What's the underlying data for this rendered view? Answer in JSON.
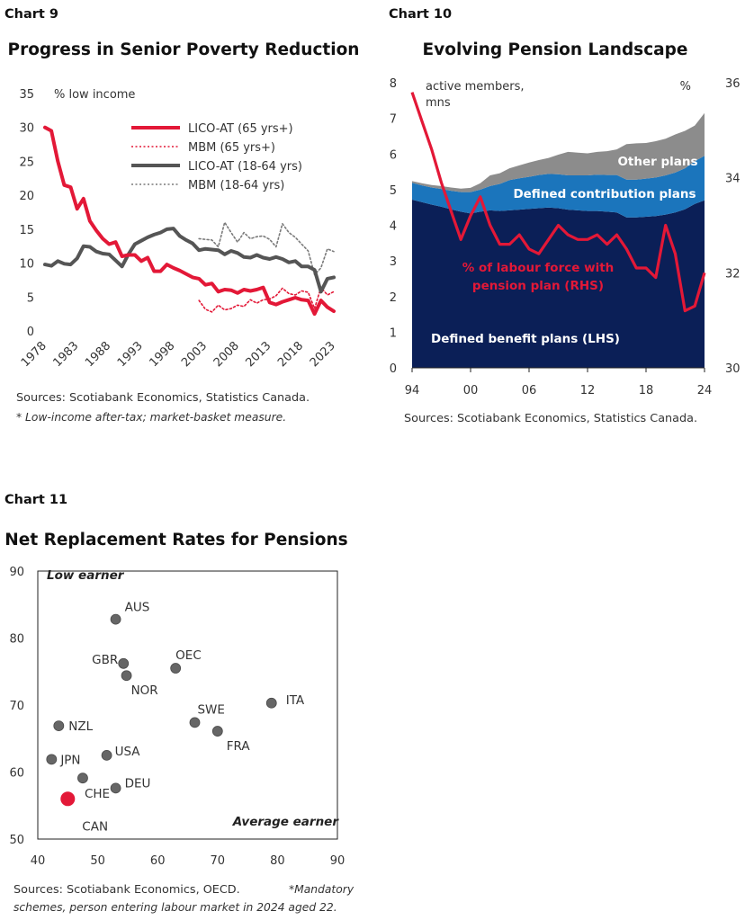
{
  "chart_data": [
    {
      "type": "line",
      "label": "Chart 9",
      "title": "Progress in Senior Poverty Reduction",
      "ylabel": "% low income",
      "ylim": [
        0,
        35
      ],
      "yticks": [
        "0",
        "5",
        "10",
        "15",
        "20",
        "25",
        "30",
        "35"
      ],
      "xlim": [
        1978,
        2023
      ],
      "xticks": [
        "1978",
        "1983",
        "1988",
        "1993",
        "1998",
        "2003",
        "2008",
        "2013",
        "2018",
        "2023"
      ],
      "grid": false,
      "legend_position": "top-right",
      "source": "Sources: Scotiabank Economics, Statistics Canada.",
      "note": "* Low-income after-tax; market-basket measure.",
      "series": [
        {
          "name": "LICO-AT (65 yrs+)",
          "color": "#e31837",
          "style": "solid",
          "x": [
            1978,
            1979,
            1980,
            1981,
            1982,
            1983,
            1984,
            1985,
            1986,
            1987,
            1988,
            1989,
            1990,
            1991,
            1992,
            1993,
            1994,
            1995,
            1996,
            1997,
            1998,
            1999,
            2000,
            2001,
            2002,
            2003,
            2004,
            2005,
            2006,
            2007,
            2008,
            2009,
            2010,
            2011,
            2012,
            2013,
            2014,
            2015,
            2016,
            2017,
            2018,
            2019,
            2020,
            2021,
            2022,
            2023
          ],
          "y": [
            30,
            29.5,
            25,
            21.5,
            21.2,
            18,
            19.5,
            16.2,
            14.8,
            13.6,
            12.8,
            13.1,
            11,
            11.2,
            11.2,
            10.3,
            10.8,
            8.8,
            8.8,
            9.8,
            9.3,
            8.9,
            8.4,
            7.9,
            7.7,
            6.8,
            7,
            5.8,
            6.1,
            6,
            5.6,
            6.1,
            5.9,
            6.1,
            6.4,
            4.2,
            3.9,
            4.3,
            4.6,
            4.9,
            4.6,
            4.5,
            2.5,
            4.5,
            3.5,
            2.9
          ]
        },
        {
          "name": "MBM (65 yrs+)",
          "color": "#e31837",
          "style": "dotted",
          "x": [
            2002,
            2003,
            2004,
            2005,
            2006,
            2007,
            2008,
            2009,
            2010,
            2011,
            2012,
            2013,
            2014,
            2015,
            2016,
            2017,
            2018,
            2019,
            2020,
            2021,
            2022,
            2023
          ],
          "y": [
            4.5,
            3.2,
            2.8,
            3.8,
            3.1,
            3.3,
            3.8,
            3.6,
            4.6,
            4.1,
            4.6,
            4.7,
            5.2,
            6.3,
            5.5,
            5.3,
            5.9,
            5.7,
            3.3,
            6.4,
            5.3,
            5.8
          ]
        },
        {
          "name": "LICO-AT (18-64 yrs)",
          "color": "#555555",
          "style": "solid",
          "x": [
            1978,
            1979,
            1980,
            1981,
            1982,
            1983,
            1984,
            1985,
            1986,
            1987,
            1988,
            1989,
            1990,
            1991,
            1992,
            1993,
            1994,
            1995,
            1996,
            1997,
            1998,
            1999,
            2000,
            2001,
            2002,
            2003,
            2004,
            2005,
            2006,
            2007,
            2008,
            2009,
            2010,
            2011,
            2012,
            2013,
            2014,
            2015,
            2016,
            2017,
            2018,
            2019,
            2020,
            2021,
            2022,
            2023
          ],
          "y": [
            9.8,
            9.6,
            10.3,
            9.9,
            9.8,
            10.7,
            12.5,
            12.4,
            11.7,
            11.4,
            11.3,
            10.4,
            9.5,
            11.3,
            12.8,
            13.3,
            13.8,
            14.2,
            14.5,
            15,
            15.1,
            14,
            13.4,
            12.9,
            11.9,
            12.1,
            12,
            11.9,
            11.3,
            11.8,
            11.5,
            10.9,
            10.8,
            11.2,
            10.8,
            10.6,
            10.9,
            10.6,
            10.1,
            10.3,
            9.5,
            9.5,
            9,
            5.8,
            7.7,
            7.9
          ]
        },
        {
          "name": "MBM (18-64 yrs)",
          "color": "#7a7a7a",
          "style": "dotted",
          "x": [
            2002,
            2003,
            2004,
            2005,
            2006,
            2007,
            2008,
            2009,
            2010,
            2011,
            2012,
            2013,
            2014,
            2015,
            2016,
            2017,
            2018,
            2019,
            2020,
            2021,
            2022,
            2023
          ],
          "y": [
            13.6,
            13.5,
            13.4,
            12.4,
            16,
            14.5,
            13.1,
            14.5,
            13.6,
            13.9,
            14,
            13.5,
            12.4,
            15.8,
            14.5,
            13.8,
            12.8,
            11.8,
            8.3,
            9.3,
            12.1,
            11.7
          ]
        }
      ]
    },
    {
      "type": "area",
      "label": "Chart 10",
      "title": "Evolving Pension Landscape",
      "ylabel_left": "active members, mns",
      "ylabel_right": "%",
      "ylim_left": [
        0,
        8
      ],
      "yticks_left": [
        "0",
        "1",
        "2",
        "3",
        "4",
        "5",
        "6",
        "7",
        "8"
      ],
      "ylim_right": [
        30,
        36
      ],
      "yticks_right": [
        "30",
        "32",
        "34",
        "36"
      ],
      "xlim": [
        1994,
        2024
      ],
      "xticks": [
        "94",
        "00",
        "06",
        "12",
        "18",
        "24"
      ],
      "grid": false,
      "source": "Sources: Scotiabank Economics, Statistics Canada.",
      "x": [
        1994,
        1995,
        1996,
        1997,
        1998,
        1999,
        2000,
        2001,
        2002,
        2003,
        2004,
        2005,
        2006,
        2007,
        2008,
        2009,
        2010,
        2011,
        2012,
        2013,
        2014,
        2015,
        2016,
        2017,
        2018,
        2019,
        2020,
        2021,
        2022,
        2023,
        2024
      ],
      "series": [
        {
          "name": "Defined benefit plans (LHS)",
          "color": "#0b1f57",
          "values": [
            4.72,
            4.65,
            4.58,
            4.52,
            4.45,
            4.38,
            4.33,
            4.38,
            4.42,
            4.4,
            4.42,
            4.44,
            4.46,
            4.48,
            4.5,
            4.48,
            4.44,
            4.42,
            4.4,
            4.4,
            4.38,
            4.36,
            4.22,
            4.22,
            4.24,
            4.26,
            4.3,
            4.36,
            4.45,
            4.6,
            4.7
          ]
        },
        {
          "name": "Defined contribution plans",
          "color": "#1b75bc",
          "values": [
            0.47,
            0.47,
            0.48,
            0.5,
            0.52,
            0.55,
            0.6,
            0.62,
            0.68,
            0.76,
            0.85,
            0.88,
            0.9,
            0.93,
            0.94,
            0.95,
            0.96,
            0.98,
            1,
            1.02,
            1.03,
            1.05,
            1.06,
            1.06,
            1.07,
            1.08,
            1.1,
            1.12,
            1.15,
            1.2,
            1.25
          ]
        },
        {
          "name": "Other plans",
          "color": "#8c8c8c",
          "values": [
            0.05,
            0.06,
            0.07,
            0.08,
            0.09,
            0.1,
            0.12,
            0.18,
            0.3,
            0.3,
            0.33,
            0.36,
            0.4,
            0.42,
            0.45,
            0.55,
            0.66,
            0.64,
            0.62,
            0.64,
            0.67,
            0.72,
            1,
            1.02,
            1,
            1.02,
            1.03,
            1.07,
            1.05,
            1,
            1.2
          ]
        },
        {
          "name": "% of labour force with pension plan (RHS)",
          "color": "#e31837",
          "type": "line",
          "axis": "right",
          "values": [
            35.8,
            35.2,
            34.6,
            33.9,
            33.3,
            32.7,
            33.2,
            33.6,
            33,
            32.6,
            32.6,
            32.8,
            32.5,
            32.4,
            32.7,
            33,
            32.8,
            32.7,
            32.7,
            32.8,
            32.6,
            32.8,
            32.5,
            32.1,
            32.1,
            31.9,
            33,
            32.4,
            31.2,
            31.3,
            32
          ]
        }
      ]
    },
    {
      "type": "scatter",
      "label": "Chart 11",
      "title": "Net Replacement Rates for Pensions",
      "xlim": [
        40,
        90
      ],
      "xticks": [
        "40",
        "50",
        "60",
        "70",
        "80",
        "90"
      ],
      "ylim": [
        50,
        90
      ],
      "yticks": [
        "50",
        "60",
        "70",
        "80",
        "90"
      ],
      "corner_top_left": "Low earner",
      "corner_bottom_right": "Average earner",
      "grid": false,
      "source": "Sources: Scotiabank Economics, OECD.",
      "note": "*Mandatory schemes, person entering labour market in 2024 aged 22.",
      "points": [
        {
          "label": "AUS",
          "x": 53,
          "y": 82.8,
          "color": "#666666"
        },
        {
          "label": "GBR",
          "x": 54.3,
          "y": 76.2,
          "color": "#666666"
        },
        {
          "label": "NOR",
          "x": 54.8,
          "y": 74.4,
          "color": "#666666"
        },
        {
          "label": "OEC",
          "x": 63,
          "y": 75.5,
          "color": "#666666"
        },
        {
          "label": "ITA",
          "x": 79,
          "y": 70.3,
          "color": "#666666"
        },
        {
          "label": "SWE",
          "x": 66.2,
          "y": 67.4,
          "color": "#666666"
        },
        {
          "label": "FRA",
          "x": 70,
          "y": 66.1,
          "color": "#666666"
        },
        {
          "label": "NZL",
          "x": 43.5,
          "y": 66.9,
          "color": "#666666"
        },
        {
          "label": "USA",
          "x": 51.5,
          "y": 62.5,
          "color": "#666666"
        },
        {
          "label": "JPN",
          "x": 42.3,
          "y": 61.9,
          "color": "#666666"
        },
        {
          "label": "CHE",
          "x": 47.5,
          "y": 59.1,
          "color": "#666666"
        },
        {
          "label": "DEU",
          "x": 53,
          "y": 57.6,
          "color": "#666666"
        },
        {
          "label": "CAN",
          "x": 45,
          "y": 56,
          "color": "#e31837",
          "highlight": true
        }
      ]
    }
  ]
}
